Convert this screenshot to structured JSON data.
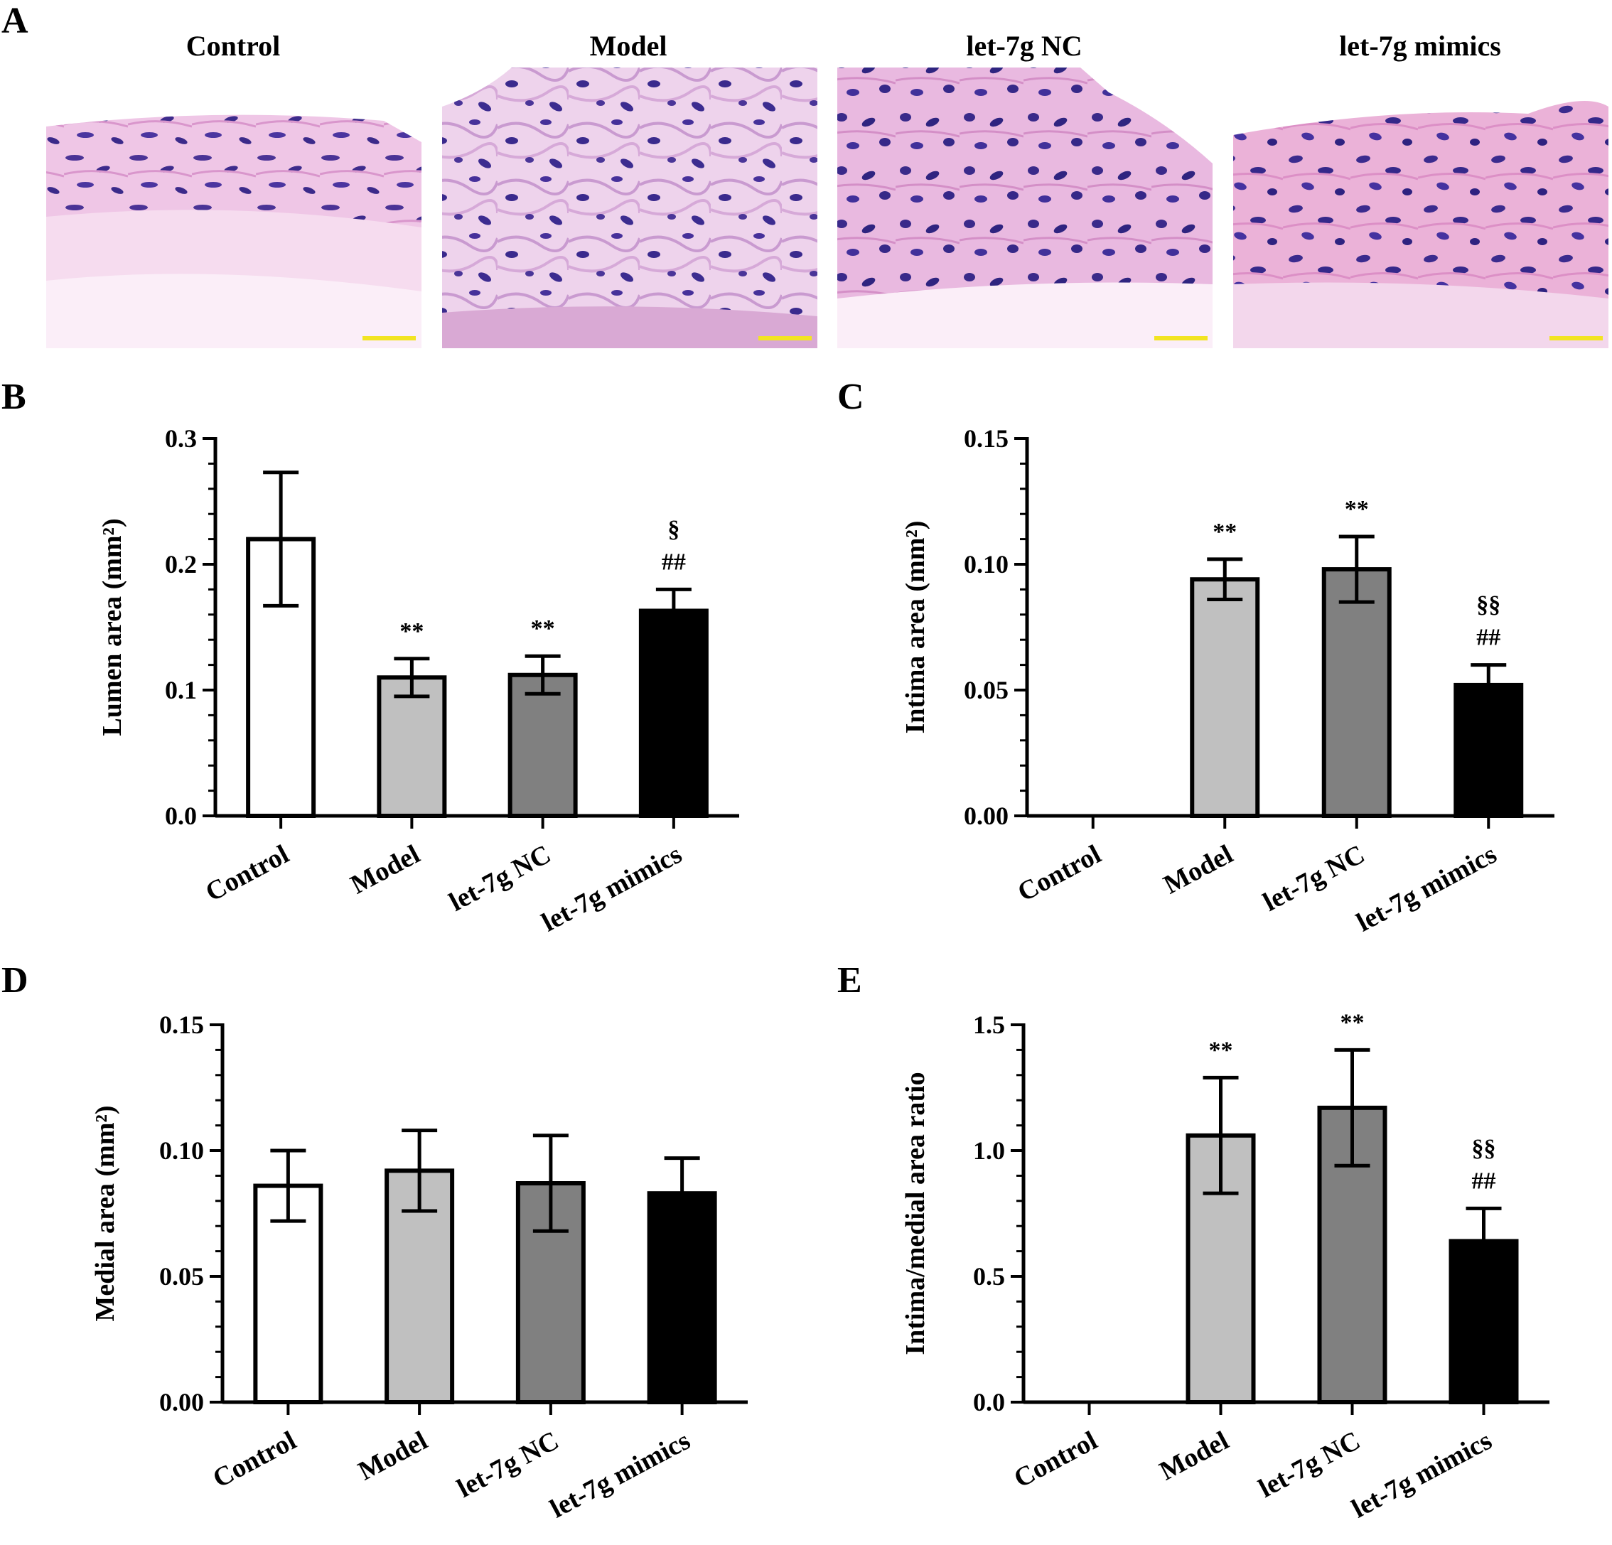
{
  "panel_a": {
    "letter": "A",
    "images": [
      {
        "title": "Control"
      },
      {
        "title": "Model"
      },
      {
        "title": "let-7g NC"
      },
      {
        "title": "let-7g mimics"
      }
    ]
  },
  "colors": {
    "Control": "#ffffff",
    "Model": "#c0c0c0",
    "let-7g NC": "#808080",
    "let-7g mimics": "#000000",
    "tissue_pink": "#e8b7dc",
    "tissue_stroma": "#f4dcef",
    "nuclei": "#3b2a8a",
    "scale_bar": "#f2e422"
  },
  "chart_data": [
    {
      "panel": "B",
      "type": "bar",
      "categories": [
        "Control",
        "Model",
        "let-7g NC",
        "let-7g mimics"
      ],
      "values": [
        0.22,
        0.11,
        0.112,
        0.163
      ],
      "errors": [
        0.053,
        0.015,
        0.015,
        0.017
      ],
      "annotations": [
        [],
        [
          "**"
        ],
        [
          "**"
        ],
        [
          "§",
          "##"
        ]
      ],
      "ylabel": "Lumen area (mm²)",
      "ylim": [
        0,
        0.3
      ],
      "yticks": [
        "0.0",
        "0.1",
        "0.2",
        "0.3"
      ]
    },
    {
      "panel": "C",
      "type": "bar",
      "categories": [
        "Control",
        "Model",
        "let-7g NC",
        "let-7g mimics"
      ],
      "values": [
        0,
        0.094,
        0.098,
        0.052
      ],
      "errors": [
        0,
        0.008,
        0.013,
        0.008
      ],
      "annotations": [
        [],
        [
          "**"
        ],
        [
          "**"
        ],
        [
          "§§",
          "##"
        ]
      ],
      "ylabel": "Intima area (mm²)",
      "ylim": [
        0,
        0.15
      ],
      "yticks": [
        "0.00",
        "0.05",
        "0.10",
        "0.15"
      ]
    },
    {
      "panel": "D",
      "type": "bar",
      "categories": [
        "Control",
        "Model",
        "let-7g NC",
        "let-7g mimics"
      ],
      "values": [
        0.086,
        0.092,
        0.087,
        0.083
      ],
      "errors": [
        0.014,
        0.016,
        0.019,
        0.014
      ],
      "annotations": [
        [],
        [],
        [],
        []
      ],
      "ylabel": "Medial area (mm²)",
      "ylim": [
        0,
        0.15
      ],
      "yticks": [
        "0.00",
        "0.05",
        "0.10",
        "0.15"
      ]
    },
    {
      "panel": "E",
      "type": "bar",
      "categories": [
        "Control",
        "Model",
        "let-7g NC",
        "let-7g mimics"
      ],
      "values": [
        0,
        1.06,
        1.17,
        0.64
      ],
      "errors": [
        0,
        0.23,
        0.23,
        0.13
      ],
      "annotations": [
        [],
        [
          "**"
        ],
        [
          "**"
        ],
        [
          "§§",
          "##"
        ]
      ],
      "ylabel": "Intima/medial area ratio",
      "ylim": [
        0,
        1.5
      ],
      "yticks": [
        "0.0",
        "0.5",
        "1.0",
        "1.5"
      ]
    }
  ]
}
